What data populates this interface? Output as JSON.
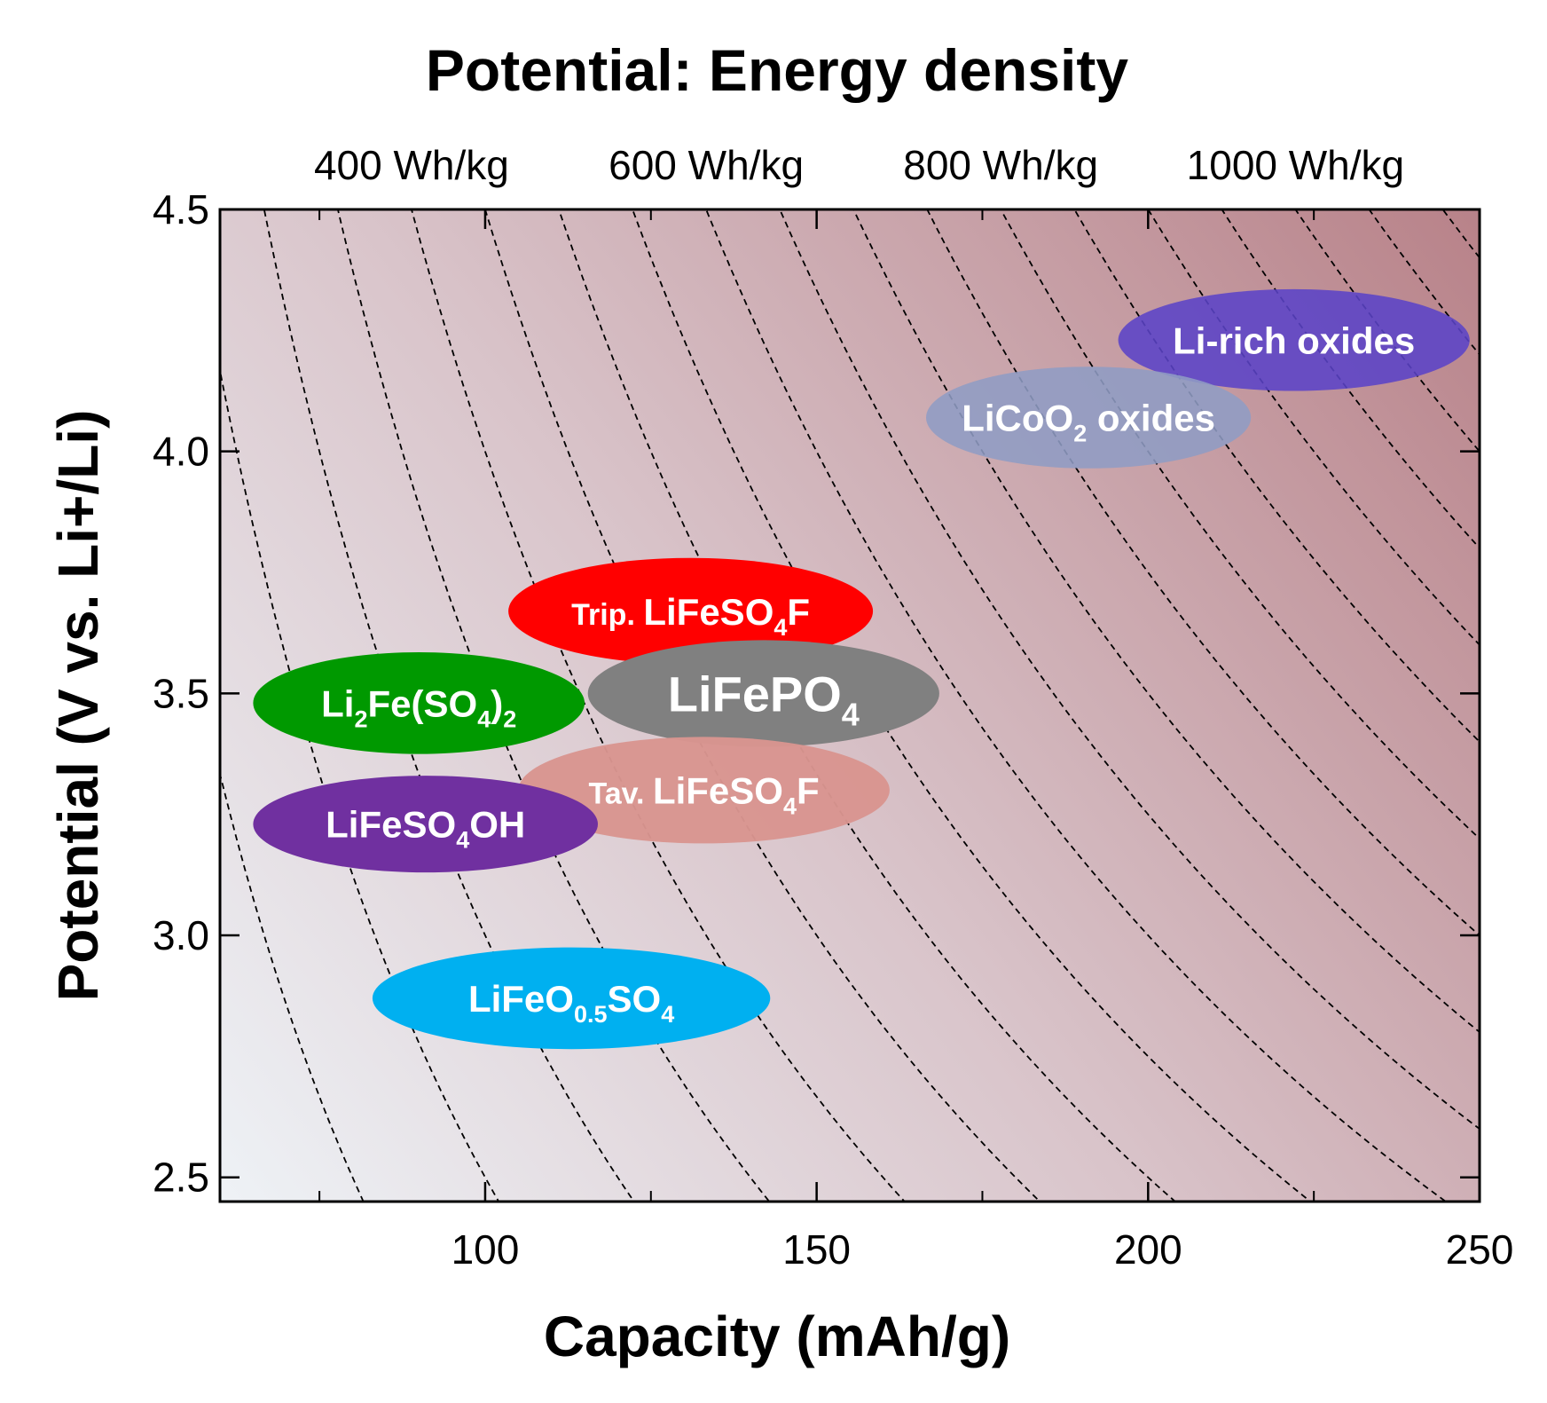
{
  "chart_data": {
    "type": "scatter",
    "title": "Potential: Energy density",
    "xlabel": "Capacity (mAh/g)",
    "ylabel": "Potential (V vs. Li+/Li)",
    "xlim": [
      60,
      250
    ],
    "ylim": [
      2.45,
      4.5
    ],
    "x_ticks": [
      100,
      150,
      200,
      250
    ],
    "x_ticks_minor": [
      75,
      125,
      175,
      225
    ],
    "y_ticks": [
      2.5,
      3.0,
      3.5,
      4.0,
      4.5
    ],
    "grid": false,
    "energy_density_labels": [
      {
        "text": "400 Wh/kg",
        "energy": 400
      },
      {
        "text": "600 Wh/kg",
        "energy": 600
      },
      {
        "text": "800 Wh/kg",
        "energy": 800
      },
      {
        "text": "1000 Wh/kg",
        "energy": 1000
      }
    ],
    "energy_contours_wh_per_kg": [
      200,
      250,
      300,
      350,
      400,
      450,
      500,
      550,
      600,
      650,
      700,
      750,
      800,
      850,
      900,
      950,
      1000,
      1050,
      1100,
      1150,
      1200
    ],
    "materials": [
      {
        "key": "li_rich",
        "label": [
          {
            "t": "Li-rich oxides"
          }
        ],
        "x_center": 222,
        "y_center": 4.23,
        "x_width": 53,
        "y_height": 0.21,
        "color": "#5b43c7",
        "opacity": 0.88
      },
      {
        "key": "licoo2",
        "label": [
          {
            "t": "LiCoO"
          },
          {
            "t": "2",
            "sub": true
          },
          {
            "t": " oxides"
          }
        ],
        "x_center": 191,
        "y_center": 4.07,
        "x_width": 49,
        "y_height": 0.21,
        "color": "#8f9cc4",
        "opacity": 0.88
      },
      {
        "key": "trip_lifeso4f",
        "label": [
          {
            "t": "Trip. ",
            "small": true
          },
          {
            "t": "LiFeSO"
          },
          {
            "t": "4",
            "sub": true
          },
          {
            "t": "F"
          }
        ],
        "x_center": 131,
        "y_center": 3.67,
        "x_width": 55,
        "y_height": 0.22,
        "color": "#ff0000",
        "opacity": 1.0
      },
      {
        "key": "lifepo4",
        "label": [
          {
            "t": "LiFePO"
          },
          {
            "t": "4",
            "sub": true
          }
        ],
        "x_center": 142,
        "y_center": 3.5,
        "x_width": 53,
        "y_height": 0.22,
        "color": "#808080",
        "opacity": 1.0,
        "big": true
      },
      {
        "key": "li2fe_so4_2",
        "label": [
          {
            "t": "Li"
          },
          {
            "t": "2",
            "sub": true
          },
          {
            "t": "Fe(SO"
          },
          {
            "t": "4",
            "sub": true
          },
          {
            "t": ")"
          },
          {
            "t": "2",
            "sub": true
          }
        ],
        "x_center": 90,
        "y_center": 3.48,
        "x_width": 50,
        "y_height": 0.21,
        "color": "#009900",
        "opacity": 1.0
      },
      {
        "key": "tav_lifeso4f",
        "label": [
          {
            "t": "Tav. ",
            "small": true
          },
          {
            "t": "LiFeSO"
          },
          {
            "t": "4",
            "sub": true
          },
          {
            "t": "F"
          }
        ],
        "x_center": 133,
        "y_center": 3.3,
        "x_width": 56,
        "y_height": 0.22,
        "color": "#d9958f",
        "opacity": 0.97
      },
      {
        "key": "lifeso4oh",
        "label": [
          {
            "t": "LiFeSO"
          },
          {
            "t": "4",
            "sub": true
          },
          {
            "t": "OH"
          }
        ],
        "x_center": 91,
        "y_center": 3.23,
        "x_width": 52,
        "y_height": 0.2,
        "color": "#7030a0",
        "opacity": 1.0
      },
      {
        "key": "lifeo05so4",
        "label": [
          {
            "t": "LiFeO"
          },
          {
            "t": "0.5",
            "sub": true
          },
          {
            "t": "SO"
          },
          {
            "t": "4",
            "sub": true
          }
        ],
        "x_center": 113,
        "y_center": 2.87,
        "x_width": 60,
        "y_height": 0.21,
        "color": "#00b0f0",
        "opacity": 1.0
      }
    ]
  }
}
